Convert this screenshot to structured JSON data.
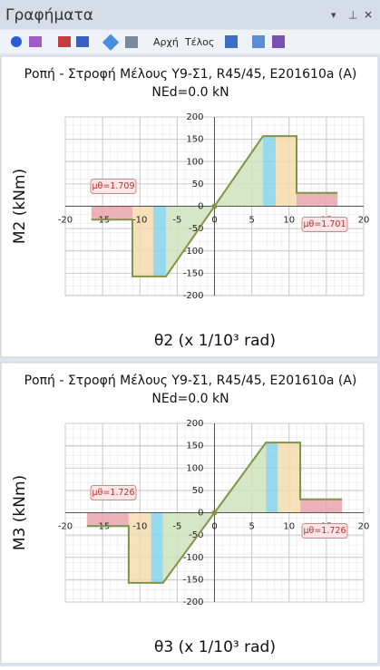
{
  "window": {
    "title": "Γραφήματα",
    "toolbar": [
      "Αρχή",
      "Τέλος"
    ]
  },
  "chart_data": [
    {
      "type": "line",
      "title": "Ροπή - Στροφή Μέλους Υ9-Σ1, R45/45, Ε201610a (Α)",
      "subtitle": "NEd=0.0 kN",
      "x_label": "θ2 (x 1/10³ rad)",
      "y_label": "M2 (kNm)",
      "xlim": [
        -20,
        20
      ],
      "ylim": [
        -200,
        200
      ],
      "xticks": [
        -20,
        -15,
        -10,
        -5,
        0,
        5,
        10,
        15,
        20
      ],
      "yticks": [
        -200,
        -150,
        -100,
        -50,
        0,
        50,
        100,
        150,
        200
      ],
      "grid": true,
      "x": [
        -16.5,
        -11,
        -11,
        -6.5,
        6.5,
        11,
        11,
        16.5
      ],
      "values": [
        -30,
        -30,
        -157,
        -157,
        157,
        157,
        30,
        30
      ],
      "color": "#7f9444",
      "regions": [
        {
          "x": [
            -16.5,
            -11
          ],
          "color": "#eaa3ad"
        },
        {
          "x": [
            -11,
            -8.2
          ],
          "color": "#f6dcae"
        },
        {
          "x": [
            -8.2,
            -6.5
          ],
          "color": "#86d4ea"
        },
        {
          "x": [
            -6.5,
            6.5
          ],
          "color": "#cfe3bd"
        },
        {
          "x": [
            6.5,
            8.2
          ],
          "color": "#86d4ea"
        },
        {
          "x": [
            8.2,
            11
          ],
          "color": "#f6dcae"
        },
        {
          "x": [
            11,
            16.5
          ],
          "color": "#eaa3ad"
        }
      ],
      "annotations": [
        "μθ=1.709",
        "μθ=1.701"
      ]
    },
    {
      "type": "line",
      "title": "Ροπή - Στροφή Μέλους Υ9-Σ1, R45/45, Ε201610a (Α)",
      "subtitle": "NEd=0.0 kN",
      "x_label": "θ3 (x 1/10³ rad)",
      "y_label": "M3 (kNm)",
      "xlim": [
        -20,
        20
      ],
      "ylim": [
        -200,
        200
      ],
      "xticks": [
        -20,
        -15,
        -10,
        -5,
        0,
        5,
        10,
        15,
        20
      ],
      "yticks": [
        -200,
        -150,
        -100,
        -50,
        0,
        50,
        100,
        150,
        200
      ],
      "grid": true,
      "x": [
        -17.1,
        -11.5,
        -11.5,
        -6.9,
        6.9,
        11.5,
        11.5,
        17.1
      ],
      "values": [
        -30,
        -30,
        -157,
        -157,
        157,
        157,
        30,
        30
      ],
      "color": "#7f9444",
      "regions": [
        {
          "x": [
            -17.1,
            -11.5
          ],
          "color": "#eaa3ad"
        },
        {
          "x": [
            -11.5,
            -8.5
          ],
          "color": "#f6dcae"
        },
        {
          "x": [
            -8.5,
            -6.9
          ],
          "color": "#86d4ea"
        },
        {
          "x": [
            -6.9,
            6.9
          ],
          "color": "#cfe3bd"
        },
        {
          "x": [
            6.9,
            8.5
          ],
          "color": "#86d4ea"
        },
        {
          "x": [
            8.5,
            11.5
          ],
          "color": "#f6dcae"
        },
        {
          "x": [
            11.5,
            17.1
          ],
          "color": "#eaa3ad"
        }
      ],
      "annotations": [
        "μθ=1.726",
        "μθ=1.726"
      ]
    }
  ]
}
